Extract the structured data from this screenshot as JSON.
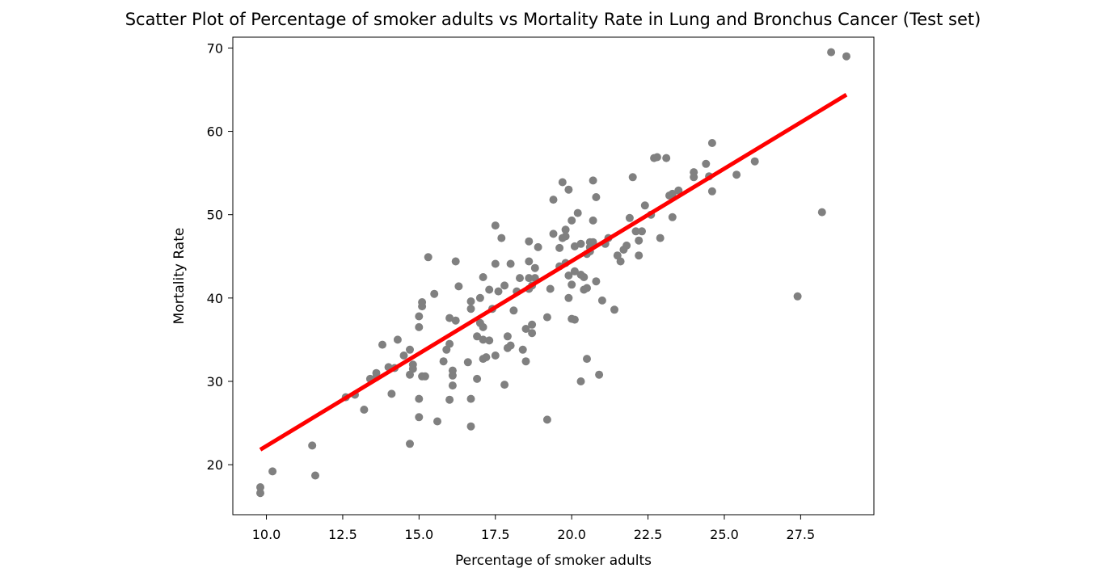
{
  "chart_data": {
    "type": "scatter",
    "title": "Scatter Plot of Percentage of smoker adults vs Mortality Rate in Lung and Bronchus Cancer (Test set)",
    "xlabel": "Percentage of smoker adults",
    "ylabel": "Mortality Rate",
    "xlim": [
      8.9,
      29.9
    ],
    "ylim": [
      14,
      71.3
    ],
    "xticks": [
      10.0,
      12.5,
      15.0,
      17.5,
      20.0,
      22.5,
      25.0,
      27.5
    ],
    "xtick_labels": [
      "10.0",
      "12.5",
      "15.0",
      "17.5",
      "20.0",
      "22.5",
      "25.0",
      "27.5"
    ],
    "yticks": [
      20,
      30,
      40,
      50,
      60,
      70
    ],
    "ytick_labels": [
      "20",
      "30",
      "40",
      "50",
      "60",
      "70"
    ],
    "grid": false,
    "colors": {
      "points": "#808080",
      "fit_line": "#ff0000",
      "axes": "#000000"
    },
    "series": [
      {
        "kind": "scatter",
        "points": [
          [
            9.8,
            17.3
          ],
          [
            9.8,
            16.6
          ],
          [
            10.2,
            19.2
          ],
          [
            11.5,
            22.3
          ],
          [
            11.6,
            18.7
          ],
          [
            12.6,
            28.1
          ],
          [
            12.9,
            28.4
          ],
          [
            13.2,
            26.6
          ],
          [
            13.4,
            30.3
          ],
          [
            13.6,
            30.5
          ],
          [
            13.6,
            31.0
          ],
          [
            13.8,
            34.4
          ],
          [
            14.0,
            31.7
          ],
          [
            14.1,
            28.5
          ],
          [
            14.2,
            31.6
          ],
          [
            14.3,
            35.0
          ],
          [
            14.5,
            33.1
          ],
          [
            14.7,
            33.8
          ],
          [
            14.7,
            30.8
          ],
          [
            14.7,
            22.5
          ],
          [
            14.8,
            32.0
          ],
          [
            14.8,
            31.5
          ],
          [
            15.0,
            27.9
          ],
          [
            15.0,
            25.7
          ],
          [
            15.0,
            36.5
          ],
          [
            15.0,
            37.8
          ],
          [
            15.1,
            39.5
          ],
          [
            15.1,
            39.0
          ],
          [
            15.1,
            30.6
          ],
          [
            15.2,
            30.6
          ],
          [
            15.3,
            44.9
          ],
          [
            15.5,
            40.5
          ],
          [
            15.6,
            25.2
          ],
          [
            15.8,
            32.4
          ],
          [
            15.9,
            33.8
          ],
          [
            16.0,
            34.5
          ],
          [
            16.0,
            37.6
          ],
          [
            16.0,
            27.8
          ],
          [
            16.1,
            30.7
          ],
          [
            16.1,
            29.5
          ],
          [
            16.1,
            31.3
          ],
          [
            16.2,
            37.3
          ],
          [
            16.2,
            44.4
          ],
          [
            16.3,
            41.4
          ],
          [
            16.6,
            32.3
          ],
          [
            16.7,
            38.7
          ],
          [
            16.7,
            39.6
          ],
          [
            16.7,
            24.6
          ],
          [
            16.7,
            27.9
          ],
          [
            16.9,
            30.3
          ],
          [
            16.9,
            35.4
          ],
          [
            17.0,
            37.0
          ],
          [
            17.0,
            40.0
          ],
          [
            17.1,
            36.5
          ],
          [
            17.1,
            32.7
          ],
          [
            17.1,
            35.0
          ],
          [
            17.1,
            42.5
          ],
          [
            17.2,
            32.9
          ],
          [
            17.3,
            41.0
          ],
          [
            17.3,
            34.9
          ],
          [
            17.4,
            38.7
          ],
          [
            17.5,
            44.1
          ],
          [
            17.5,
            48.7
          ],
          [
            17.5,
            33.1
          ],
          [
            17.6,
            40.8
          ],
          [
            17.7,
            47.2
          ],
          [
            17.8,
            29.6
          ],
          [
            17.8,
            41.5
          ],
          [
            17.9,
            35.4
          ],
          [
            17.9,
            34.0
          ],
          [
            18.0,
            44.1
          ],
          [
            18.0,
            34.3
          ],
          [
            18.1,
            38.5
          ],
          [
            18.2,
            40.8
          ],
          [
            18.3,
            42.4
          ],
          [
            18.4,
            33.8
          ],
          [
            18.5,
            32.4
          ],
          [
            18.5,
            36.3
          ],
          [
            18.6,
            41.1
          ],
          [
            18.6,
            44.4
          ],
          [
            18.6,
            46.8
          ],
          [
            18.6,
            42.4
          ],
          [
            18.7,
            36.8
          ],
          [
            18.7,
            35.8
          ],
          [
            18.7,
            41.5
          ],
          [
            18.8,
            43.6
          ],
          [
            18.8,
            42.4
          ],
          [
            18.9,
            46.1
          ],
          [
            19.2,
            37.7
          ],
          [
            19.2,
            25.4
          ],
          [
            19.3,
            41.1
          ],
          [
            19.4,
            47.7
          ],
          [
            19.4,
            51.8
          ],
          [
            19.6,
            46.0
          ],
          [
            19.6,
            43.8
          ],
          [
            19.7,
            53.9
          ],
          [
            19.7,
            47.2
          ],
          [
            19.8,
            48.2
          ],
          [
            19.8,
            47.4
          ],
          [
            19.8,
            44.2
          ],
          [
            19.9,
            42.7
          ],
          [
            19.9,
            40.0
          ],
          [
            19.9,
            53.0
          ],
          [
            20.0,
            37.5
          ],
          [
            20.0,
            41.6
          ],
          [
            20.0,
            49.3
          ],
          [
            20.1,
            37.4
          ],
          [
            20.1,
            46.2
          ],
          [
            20.1,
            43.2
          ],
          [
            20.2,
            50.2
          ],
          [
            20.3,
            46.5
          ],
          [
            20.3,
            42.8
          ],
          [
            20.3,
            30.0
          ],
          [
            20.4,
            42.5
          ],
          [
            20.4,
            41.0
          ],
          [
            20.5,
            32.7
          ],
          [
            20.5,
            41.2
          ],
          [
            20.5,
            45.3
          ],
          [
            20.6,
            46.1
          ],
          [
            20.6,
            46.7
          ],
          [
            20.6,
            45.6
          ],
          [
            20.7,
            49.3
          ],
          [
            20.7,
            46.7
          ],
          [
            20.7,
            54.1
          ],
          [
            20.8,
            52.1
          ],
          [
            20.8,
            42.0
          ],
          [
            20.9,
            30.8
          ],
          [
            21.0,
            39.7
          ],
          [
            21.1,
            46.5
          ],
          [
            21.2,
            47.2
          ],
          [
            21.4,
            38.6
          ],
          [
            21.5,
            45.1
          ],
          [
            21.6,
            44.4
          ],
          [
            21.7,
            45.8
          ],
          [
            21.8,
            46.3
          ],
          [
            21.9,
            49.6
          ],
          [
            22.0,
            54.5
          ],
          [
            22.1,
            48.0
          ],
          [
            22.2,
            45.1
          ],
          [
            22.2,
            46.9
          ],
          [
            22.3,
            48.0
          ],
          [
            22.4,
            51.1
          ],
          [
            22.6,
            50.0
          ],
          [
            22.7,
            56.8
          ],
          [
            22.8,
            56.9
          ],
          [
            22.9,
            47.2
          ],
          [
            23.1,
            56.8
          ],
          [
            23.2,
            52.3
          ],
          [
            23.3,
            52.5
          ],
          [
            23.3,
            49.7
          ],
          [
            23.5,
            52.9
          ],
          [
            24.0,
            54.5
          ],
          [
            24.0,
            55.1
          ],
          [
            24.4,
            56.1
          ],
          [
            24.5,
            54.6
          ],
          [
            24.6,
            58.6
          ],
          [
            24.6,
            52.8
          ],
          [
            25.4,
            54.8
          ],
          [
            26.0,
            56.4
          ],
          [
            27.4,
            40.2
          ],
          [
            28.2,
            50.3
          ],
          [
            28.5,
            69.5
          ],
          [
            29.0,
            69.0
          ]
        ]
      },
      {
        "kind": "line",
        "points": [
          [
            9.8,
            21.8
          ],
          [
            29.0,
            64.4
          ]
        ]
      }
    ]
  }
}
